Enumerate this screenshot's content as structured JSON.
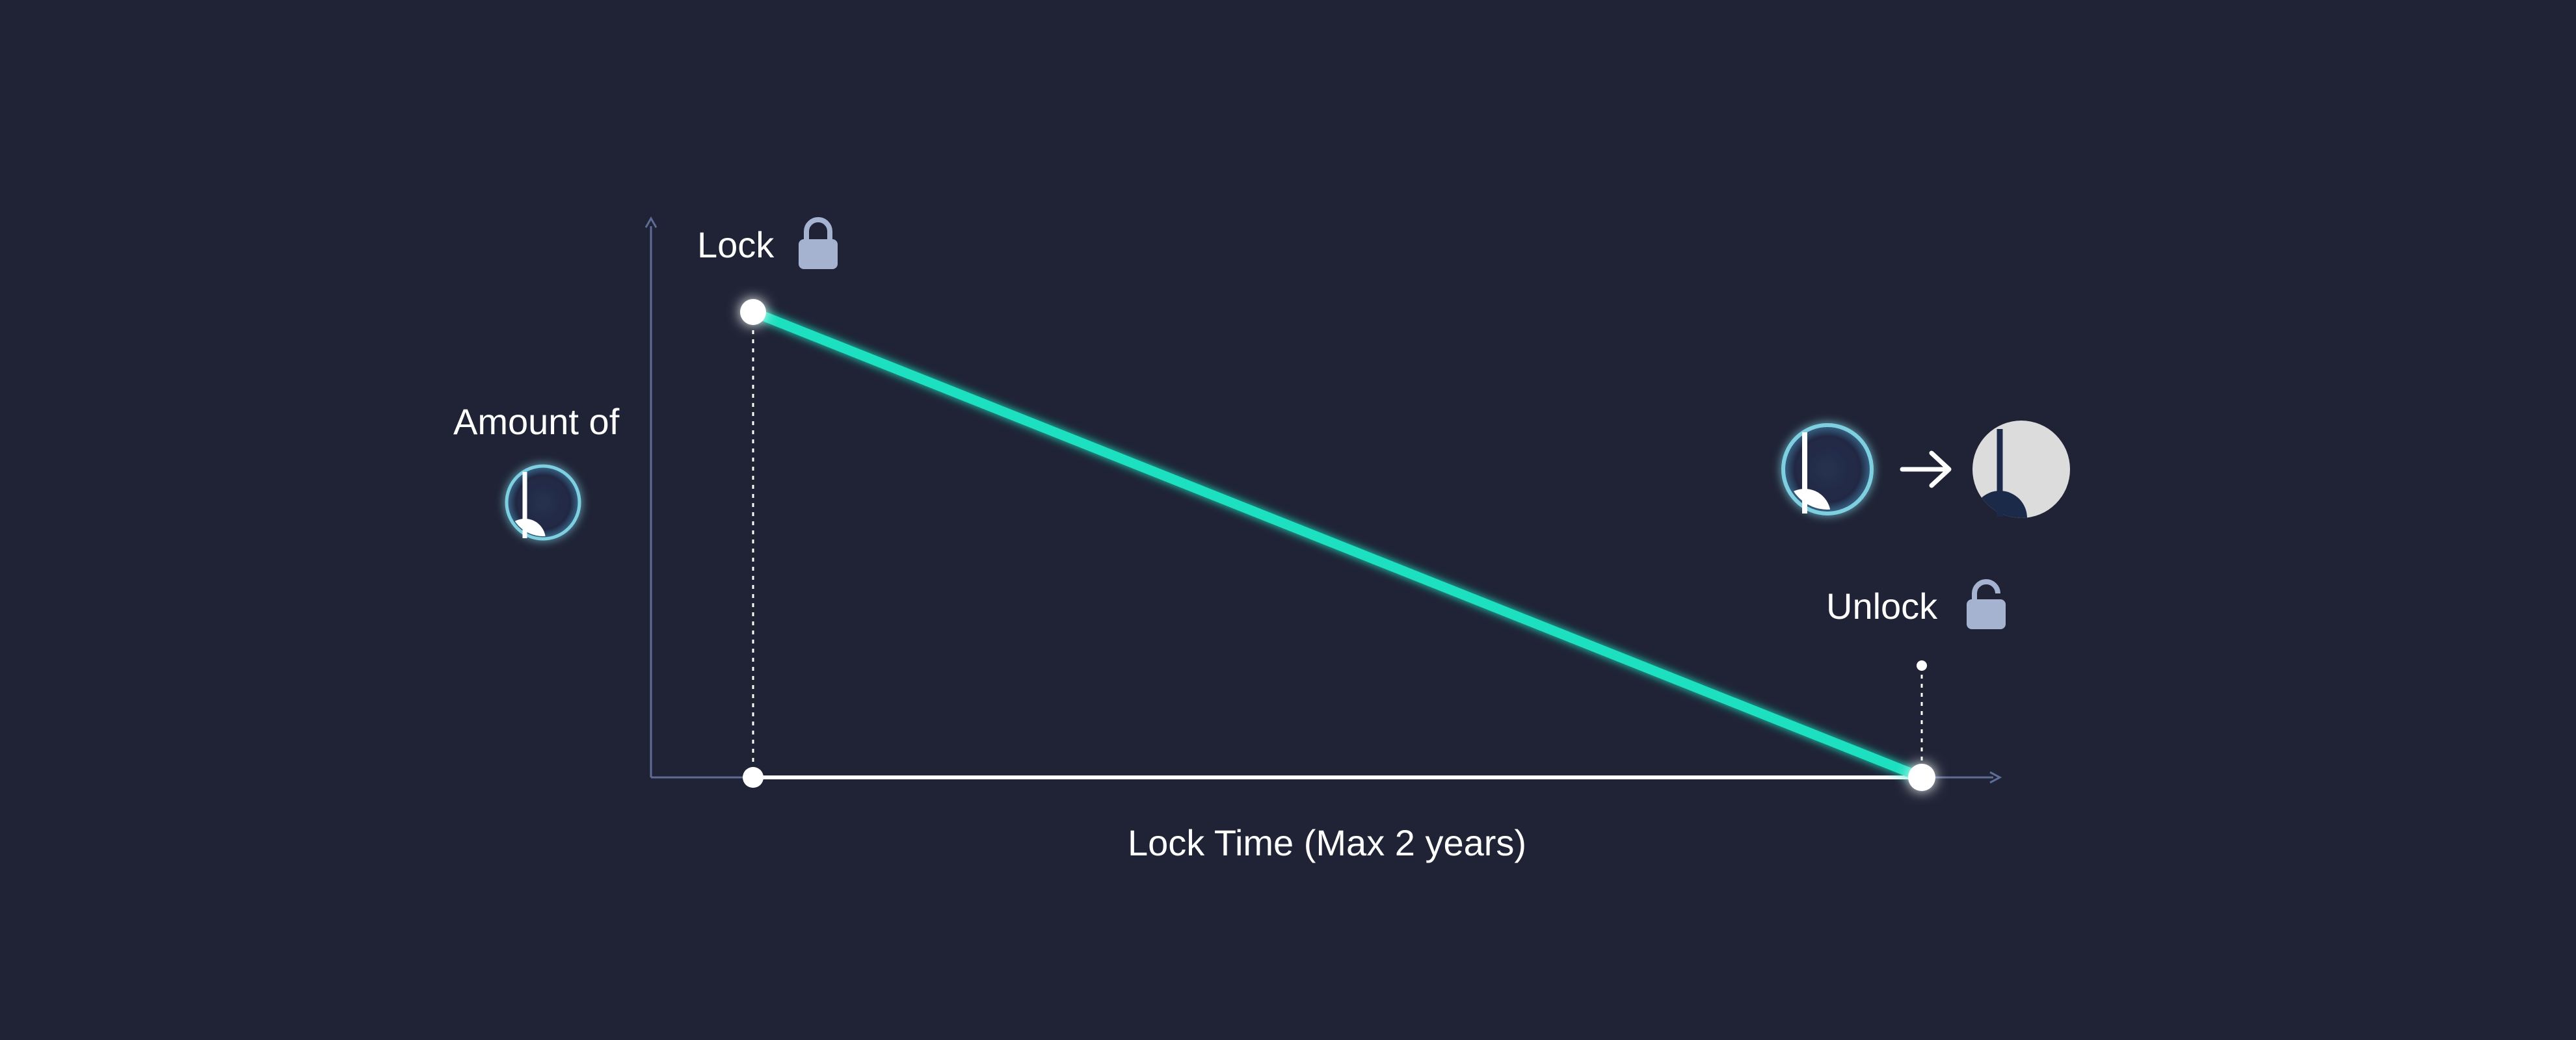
{
  "diagram": {
    "y_axis_label": "Amount of",
    "x_axis_label": "Lock Time (Max 2 years)",
    "lock_label": "Lock",
    "unlock_label": "Unlock",
    "icons": {
      "lock": "lock-closed-icon",
      "unlock": "lock-open-icon",
      "token": "token-icon",
      "conversion_arrow": "arrow-right-icon",
      "result_token": "unlocked-token-icon"
    },
    "colors": {
      "background": "#1f2335",
      "decay_line": "#1fe0bf",
      "axis": "#5d6d96",
      "baseline": "#ffffff",
      "lock_icon": "#a5b3d1",
      "text": "#ffffff"
    }
  }
}
